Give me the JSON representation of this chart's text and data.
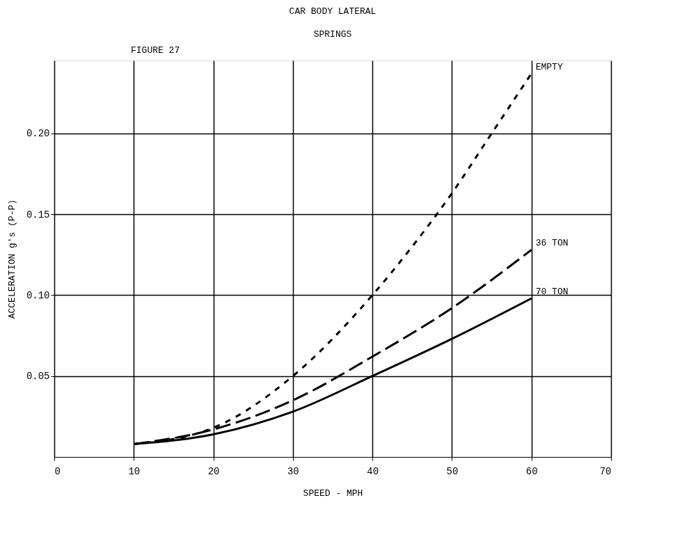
{
  "chart_data": {
    "type": "line",
    "title": "CAR BODY LATERAL",
    "subtitle": "SPRINGS",
    "annotations": [
      "FIGURE 27"
    ],
    "xlabel": "SPEED - MPH",
    "ylabel": "ACCELERATION  g's (P-P)",
    "xlim": [
      0,
      70
    ],
    "xticks": [
      0,
      10,
      20,
      30,
      40,
      50,
      60,
      70
    ],
    "ylim": [
      0,
      0.245
    ],
    "yticks": [
      {
        "value": 0.05,
        "label": "0.05"
      },
      {
        "value": 0.1,
        "label": "0.10"
      },
      {
        "value": 0.15,
        "label": "0.15"
      },
      {
        "value": 0.2,
        "label": "0.20"
      }
    ],
    "grid": true,
    "marker": "none",
    "series": [
      {
        "name": "EMPTY",
        "color": "#000000",
        "line_style": "dotted",
        "x": [
          10,
          20,
          30,
          40,
          45,
          50,
          55,
          60
        ],
        "values": [
          0.008,
          0.018,
          0.05,
          0.1,
          0.13,
          0.163,
          0.2,
          0.237
        ]
      },
      {
        "name": "36 TON",
        "color": "#000000",
        "line_style": "dashed",
        "x": [
          10,
          20,
          30,
          40,
          50,
          60
        ],
        "values": [
          0.008,
          0.017,
          0.035,
          0.062,
          0.092,
          0.128
        ]
      },
      {
        "name": "70 TON",
        "color": "#000000",
        "line_style": "solid",
        "x": [
          10,
          20,
          30,
          40,
          50,
          60
        ],
        "values": [
          0.008,
          0.014,
          0.028,
          0.05,
          0.073,
          0.098
        ]
      }
    ]
  }
}
